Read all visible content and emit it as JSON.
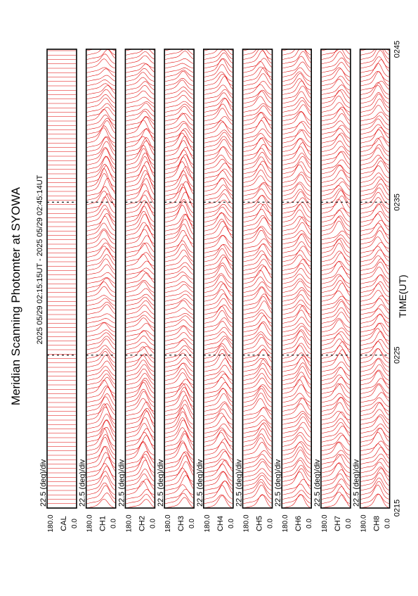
{
  "chart_data": {
    "type": "line",
    "title": "Meridian Scanning Photomter at SYOWA",
    "time_range": "2025 05/29 02:15:15UT - 2025 05/29 02:45:14UT",
    "xlabel": "TIME(UT)",
    "x_ticks": [
      "0215",
      "0225",
      "0235",
      "0245"
    ],
    "xlim": [
      "0215",
      "0245"
    ],
    "ylim": [
      0.0,
      180.0
    ],
    "y_tick_labels": [
      "180.0",
      "0.0"
    ],
    "scale_label": "22.5 (deg)/div",
    "colors": {
      "trace": "#e00000",
      "axes": "#000000",
      "background": "#ffffff"
    },
    "panels": [
      {
        "channel": "CAL"
      },
      {
        "channel": "CH1"
      },
      {
        "channel": "CH2"
      },
      {
        "channel": "CH3"
      },
      {
        "channel": "CH4"
      },
      {
        "channel": "CH5"
      },
      {
        "channel": "CH6"
      },
      {
        "channel": "CH7"
      },
      {
        "channel": "CH8"
      }
    ]
  }
}
